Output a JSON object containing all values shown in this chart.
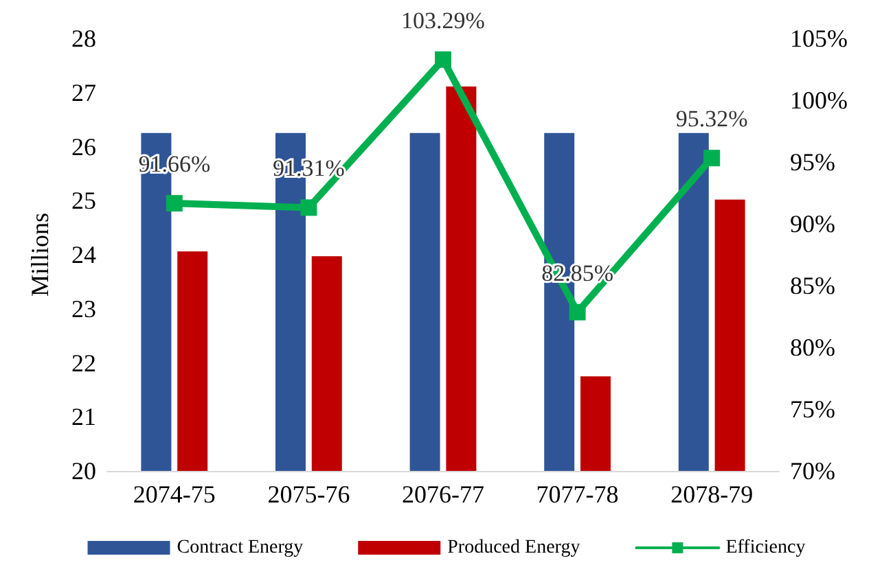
{
  "chart_data": {
    "type": "bar",
    "ylabel": "Millions",
    "categories": [
      "2074-75",
      "2075-76",
      "2076-77",
      "7077-78",
      "2078-79"
    ],
    "series": [
      {
        "name": "Contract Energy",
        "color": "#2f5597",
        "values": [
          26.25,
          26.25,
          26.25,
          26.25,
          26.25
        ]
      },
      {
        "name": "Produced Energy",
        "color": "#c00000",
        "values": [
          24.06,
          23.97,
          27.11,
          21.75,
          25.02
        ]
      },
      {
        "name": "Efficiency",
        "type": "line",
        "axis": "y2",
        "color": "#00b050",
        "values": [
          91.66,
          91.31,
          103.29,
          82.85,
          95.32
        ],
        "value_labels": [
          "91.66%",
          "91.31%",
          "103.29%",
          "82.85%",
          "95.32%"
        ]
      }
    ],
    "ylim": [
      20,
      28
    ],
    "yticks": [
      20,
      21,
      22,
      23,
      24,
      25,
      26,
      27,
      28
    ],
    "y2lim": [
      70,
      105
    ],
    "y2ticks": [
      {
        "value": 70,
        "label": "70%"
      },
      {
        "value": 75,
        "label": "75%"
      },
      {
        "value": 80,
        "label": "80%"
      },
      {
        "value": 85,
        "label": "85%"
      },
      {
        "value": 90,
        "label": "90%"
      },
      {
        "value": 95,
        "label": "95%"
      },
      {
        "value": 100,
        "label": "100%"
      },
      {
        "value": 105,
        "label": "105%"
      }
    ],
    "legend": "bottom",
    "marker": "square",
    "line_style": "solid"
  }
}
